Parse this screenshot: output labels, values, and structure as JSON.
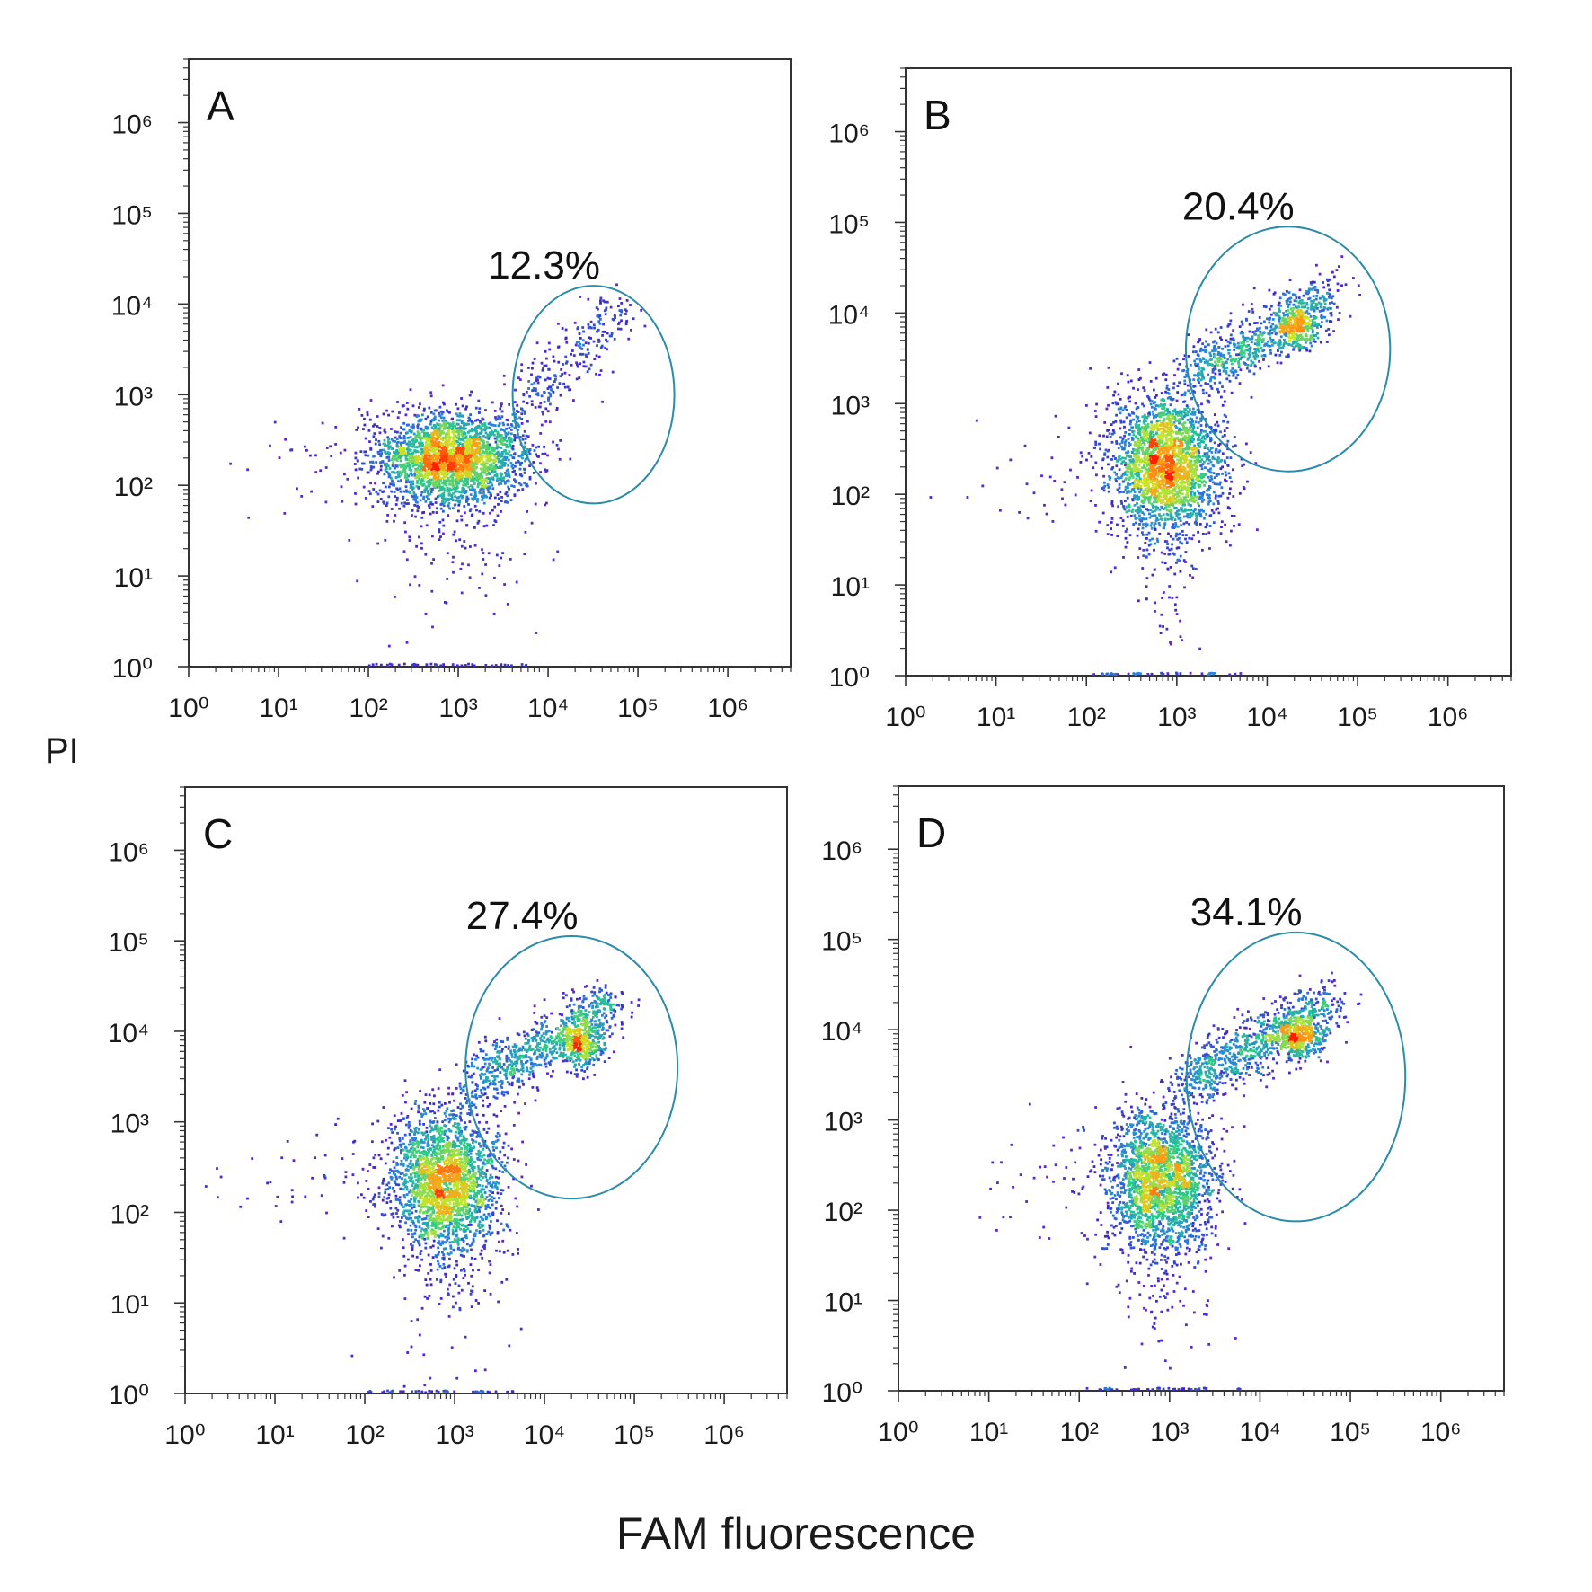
{
  "figure": {
    "xlabel": "FAM fluorescence",
    "ylabel": "PI"
  },
  "chart_data": [
    {
      "type": "scatter",
      "panel_label": "A",
      "gate_percent": "12.3%",
      "x_scale": "log",
      "y_scale": "log",
      "xlim": [
        1,
        5000000
      ],
      "ylim": [
        1,
        5000000
      ],
      "xticks": [
        1,
        10,
        100,
        1000,
        10000,
        100000,
        1000000
      ],
      "yticks": [
        1,
        10,
        100,
        1000,
        10000,
        100000,
        1000000
      ],
      "clusters": [
        {
          "name": "main",
          "center": [
            800,
            200
          ],
          "spread": [
            0.42,
            0.24
          ],
          "count": 2600
        },
        {
          "name": "diagonal",
          "from": [
            3000,
            400
          ],
          "to": [
            60000,
            8000
          ],
          "count": 300
        }
      ],
      "gate": {
        "center": [
          32000,
          1000
        ],
        "log_radius": [
          0.9,
          1.2
        ]
      },
      "colors": {
        "gate": "#2a8ca8",
        "low_density": "#8a2be2",
        "high_density": "#ff2200"
      }
    },
    {
      "type": "scatter",
      "panel_label": "B",
      "gate_percent": "20.4%",
      "x_scale": "log",
      "y_scale": "log",
      "xlim": [
        1,
        5000000
      ],
      "ylim": [
        1,
        5000000
      ],
      "xticks": [
        1,
        10,
        100,
        1000,
        10000,
        100000,
        1000000
      ],
      "yticks": [
        1,
        10,
        100,
        1000,
        10000,
        100000,
        1000000
      ],
      "clusters": [
        {
          "name": "main",
          "center": [
            800,
            220
          ],
          "spread": [
            0.3,
            0.38
          ],
          "count": 2400
        },
        {
          "name": "diagonal",
          "from": [
            1500,
            2000
          ],
          "to": [
            50000,
            15000
          ],
          "count": 700
        },
        {
          "name": "dense",
          "center": [
            22000,
            7000
          ],
          "spread": [
            0.12,
            0.12
          ],
          "count": 250
        }
      ],
      "gate": {
        "center": [
          17000,
          4000
        ],
        "log_radius": [
          1.13,
          1.35
        ]
      },
      "colors": {
        "gate": "#2a8ca8",
        "low_density": "#8a2be2",
        "high_density": "#ff2200"
      }
    },
    {
      "type": "scatter",
      "panel_label": "C",
      "gate_percent": "27.4%",
      "x_scale": "log",
      "y_scale": "log",
      "xlim": [
        1,
        5000000
      ],
      "ylim": [
        1,
        5000000
      ],
      "xticks": [
        1,
        10,
        100,
        1000,
        10000,
        100000,
        1000000
      ],
      "yticks": [
        1,
        10,
        100,
        1000,
        10000,
        100000,
        1000000
      ],
      "clusters": [
        {
          "name": "main",
          "center": [
            800,
            220
          ],
          "spread": [
            0.3,
            0.4
          ],
          "count": 2300
        },
        {
          "name": "diagonal",
          "from": [
            1500,
            2500
          ],
          "to": [
            60000,
            20000
          ],
          "count": 800
        },
        {
          "name": "dense",
          "center": [
            25000,
            7000
          ],
          "spread": [
            0.13,
            0.13
          ],
          "count": 300
        }
      ],
      "gate": {
        "center": [
          20000,
          4000
        ],
        "log_radius": [
          1.18,
          1.45
        ]
      },
      "colors": {
        "gate": "#2a8ca8",
        "low_density": "#8a2be2",
        "high_density": "#ff2200"
      }
    },
    {
      "type": "scatter",
      "panel_label": "D",
      "gate_percent": "34.1%",
      "x_scale": "log",
      "y_scale": "log",
      "xlim": [
        1,
        5000000
      ],
      "ylim": [
        1,
        5000000
      ],
      "xticks": [
        1,
        10,
        100,
        1000,
        10000,
        100000,
        1000000
      ],
      "yticks": [
        1,
        10,
        100,
        1000,
        10000,
        100000,
        1000000
      ],
      "clusters": [
        {
          "name": "main",
          "center": [
            800,
            220
          ],
          "spread": [
            0.3,
            0.4
          ],
          "count": 2200
        },
        {
          "name": "diagonal",
          "from": [
            1500,
            2500
          ],
          "to": [
            60000,
            20000
          ],
          "count": 900
        },
        {
          "name": "dense",
          "center": [
            28000,
            8000
          ],
          "spread": [
            0.13,
            0.13
          ],
          "count": 320
        }
      ],
      "gate": {
        "center": [
          25000,
          3000
        ],
        "log_radius": [
          1.21,
          1.6
        ]
      },
      "colors": {
        "gate": "#2a8ca8",
        "low_density": "#8a2be2",
        "high_density": "#ff2200"
      }
    }
  ]
}
